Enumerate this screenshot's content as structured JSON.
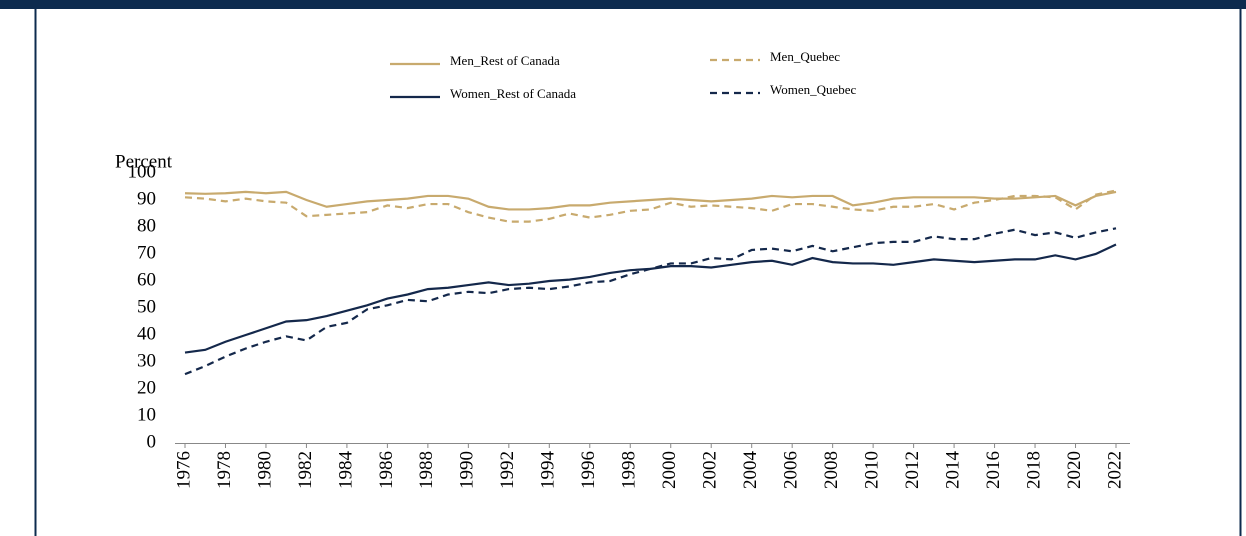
{
  "chart_data": {
    "type": "line",
    "y_label": "Percent",
    "x": [
      1976,
      1977,
      1978,
      1979,
      1980,
      1981,
      1982,
      1983,
      1984,
      1985,
      1986,
      1987,
      1988,
      1989,
      1990,
      1991,
      1992,
      1993,
      1994,
      1995,
      1996,
      1997,
      1998,
      1999,
      2000,
      2001,
      2002,
      2003,
      2004,
      2005,
      2006,
      2007,
      2008,
      2009,
      2010,
      2011,
      2012,
      2013,
      2014,
      2015,
      2016,
      2017,
      2018,
      2019,
      2020,
      2021,
      2022
    ],
    "xlim": [
      1976,
      2022
    ],
    "xticks": [
      1976,
      1978,
      1980,
      1982,
      1984,
      1986,
      1988,
      1990,
      1992,
      1994,
      1996,
      1998,
      2000,
      2002,
      2004,
      2006,
      2008,
      2010,
      2012,
      2014,
      2016,
      2018,
      2020,
      2022
    ],
    "ylim": [
      0,
      100
    ],
    "yticks": [
      0,
      10,
      20,
      30,
      40,
      50,
      60,
      70,
      80,
      90,
      100
    ],
    "grid": false,
    "series": [
      {
        "name": "Men_Rest of Canada",
        "color": "#c8aa6e",
        "style": "solid",
        "values": [
          92.5,
          92.3,
          92.5,
          93,
          92.5,
          93,
          90,
          87.5,
          88.5,
          89.5,
          90,
          90.5,
          91.5,
          91.5,
          90.5,
          87.5,
          86.5,
          86.5,
          87,
          88,
          88,
          89,
          89.5,
          90,
          90.5,
          90,
          89.5,
          90,
          90.5,
          91.5,
          91,
          91.5,
          91.5,
          88,
          89,
          90.5,
          91,
          91,
          91,
          91,
          90.5,
          90.5,
          91,
          91.5,
          88,
          91.5,
          93
        ]
      },
      {
        "name": "Men_Quebec",
        "color": "#c8aa6e",
        "style": "dashed",
        "values": [
          91,
          90.5,
          89.5,
          90.5,
          89.5,
          89,
          84,
          84.5,
          85,
          85.5,
          88,
          87,
          88.5,
          88.5,
          85.5,
          83.5,
          82,
          82,
          83,
          85,
          83.5,
          84.5,
          86,
          86.5,
          89,
          87.5,
          88,
          87.5,
          87,
          86,
          88.5,
          88.5,
          87.5,
          86.5,
          86,
          87.5,
          87.5,
          88.5,
          86.5,
          89,
          90,
          91.5,
          91.5,
          91,
          86.5,
          92,
          93.5
        ]
      },
      {
        "name": "Women_Rest of Canada",
        "color": "#14284b",
        "style": "solid",
        "values": [
          33.5,
          34.5,
          37.5,
          40,
          42.5,
          45,
          45.5,
          47,
          49,
          51,
          53.5,
          55,
          57,
          57.5,
          58.5,
          59.5,
          58.5,
          59,
          60,
          60.5,
          61.5,
          63,
          64,
          64.5,
          65.5,
          65.5,
          65,
          66,
          67,
          67.5,
          66,
          68.5,
          67,
          66.5,
          66.5,
          66,
          67,
          68,
          67.5,
          67,
          67.5,
          68,
          68,
          69.5,
          68,
          70,
          73.5
        ]
      },
      {
        "name": "Women_Quebec",
        "color": "#14284b",
        "style": "dashed",
        "values": [
          25.5,
          28.5,
          32,
          35,
          37.5,
          39.5,
          38,
          43,
          44.5,
          49.5,
          51,
          53,
          52.5,
          55,
          56,
          55.5,
          57,
          57.5,
          57,
          58,
          59.5,
          60,
          62.5,
          64.5,
          66.5,
          66.5,
          68.5,
          68,
          71.5,
          72,
          71,
          73,
          71,
          72.5,
          74,
          74.5,
          74.5,
          76.5,
          75.5,
          75.5,
          77.5,
          79,
          77,
          78,
          76,
          78,
          79.5
        ]
      }
    ]
  }
}
